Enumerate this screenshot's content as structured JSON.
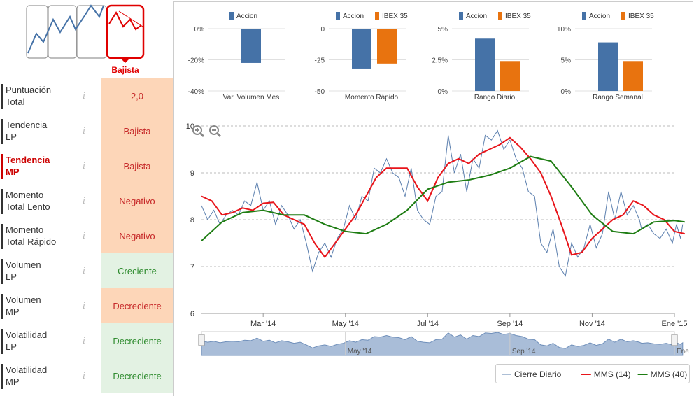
{
  "trend_header": {
    "selected_label": "Bajista"
  },
  "rows": [
    {
      "label_lines": [
        "Puntuación",
        "Total"
      ],
      "value": "2,0",
      "tone": "red",
      "active": false
    },
    {
      "label_lines": [
        "Tendencia",
        "LP"
      ],
      "value": "Bajista",
      "tone": "red",
      "active": false
    },
    {
      "label_lines": [
        "Tendencia",
        "MP"
      ],
      "value": "Bajista",
      "tone": "red",
      "active": true
    },
    {
      "label_lines": [
        "Momento",
        "Total Lento"
      ],
      "value": "Negativo",
      "tone": "red",
      "active": false
    },
    {
      "label_lines": [
        "Momento",
        "Total Rápido"
      ],
      "value": "Negativo",
      "tone": "red",
      "active": false
    },
    {
      "label_lines": [
        "Volumen",
        "LP"
      ],
      "value": "Creciente",
      "tone": "green",
      "active": false
    },
    {
      "label_lines": [
        "Volumen",
        "MP"
      ],
      "value": "Decreciente",
      "tone": "red",
      "active": false
    },
    {
      "label_lines": [
        "Volatilidad",
        "LP"
      ],
      "value": "Decreciente",
      "tone": "green",
      "active": false
    },
    {
      "label_lines": [
        "Volatilidad",
        "MP"
      ],
      "value": "Decreciente",
      "tone": "green",
      "active": false
    }
  ],
  "info_glyph": "i",
  "colors": {
    "accion": "#4572a7",
    "ibex": "#e8730f",
    "mms14": "#e8151b",
    "mms40": "#1e7d13",
    "cierre": "#5b7fae",
    "red_accent": "#e00000"
  },
  "chart_data": [
    {
      "type": "bar",
      "categories": [
        "Var. Volumen Mes"
      ],
      "series": [
        {
          "name": "Accion",
          "values": [
            -22
          ]
        }
      ],
      "yticks": [
        "0%",
        "-20%",
        "-40%"
      ],
      "ylim": [
        -40,
        0
      ]
    },
    {
      "type": "bar",
      "categories": [
        "Momento Rápido"
      ],
      "series": [
        {
          "name": "Accion",
          "values": [
            -32
          ]
        },
        {
          "name": "IBEX 35",
          "values": [
            -28
          ]
        }
      ],
      "yticks": [
        "0",
        "-25",
        "-50"
      ],
      "ylim": [
        -50,
        0
      ]
    },
    {
      "type": "bar",
      "categories": [
        "Rango Diario"
      ],
      "series": [
        {
          "name": "Accion",
          "values": [
            4.2
          ]
        },
        {
          "name": "IBEX 35",
          "values": [
            2.4
          ]
        }
      ],
      "yticks": [
        "5%",
        "2.5%",
        "0%"
      ],
      "ylim": [
        0,
        5
      ]
    },
    {
      "type": "bar",
      "categories": [
        "Rango Semanal"
      ],
      "series": [
        {
          "name": "Accion",
          "values": [
            7.8
          ]
        },
        {
          "name": "IBEX 35",
          "values": [
            4.8
          ]
        }
      ],
      "yticks": [
        "10%",
        "5%",
        "0%"
      ],
      "ylim": [
        0,
        10
      ]
    },
    {
      "type": "line",
      "yticks": [
        6,
        7,
        8,
        9,
        10
      ],
      "ylim": [
        6,
        10
      ],
      "xlim": [
        0,
        11.5
      ],
      "xticks": [
        {
          "x": 1.5,
          "label": "Mar '14"
        },
        {
          "x": 3.5,
          "label": "May '14"
        },
        {
          "x": 5.5,
          "label": "Jul '14"
        },
        {
          "x": 7.5,
          "label": "Sep '14"
        },
        {
          "x": 9.5,
          "label": "Nov '14"
        },
        {
          "x": 11.5,
          "label": "Ene '15"
        }
      ],
      "navigator_labels": [
        {
          "x": 3.5,
          "label": "May '14"
        },
        {
          "x": 7.5,
          "label": "Sep '14"
        },
        {
          "x": 11.5,
          "label": "Ene"
        }
      ],
      "legend": [
        "Cierre Diario",
        "MMS (14)",
        "MMS (40)"
      ],
      "series": [
        {
          "name": "Cierre Diario",
          "x": [
            0,
            0.15,
            0.3,
            0.45,
            0.6,
            0.75,
            0.9,
            1.05,
            1.2,
            1.35,
            1.5,
            1.65,
            1.8,
            1.95,
            2.1,
            2.25,
            2.4,
            2.55,
            2.7,
            2.85,
            3.0,
            3.15,
            3.3,
            3.45,
            3.6,
            3.75,
            3.9,
            4.05,
            4.2,
            4.35,
            4.5,
            4.65,
            4.8,
            4.95,
            5.1,
            5.25,
            5.4,
            5.55,
            5.7,
            5.85,
            6.0,
            6.15,
            6.3,
            6.45,
            6.6,
            6.75,
            6.9,
            7.05,
            7.2,
            7.35,
            7.5,
            7.65,
            7.8,
            7.95,
            8.1,
            8.25,
            8.4,
            8.55,
            8.7,
            8.85,
            9.0,
            9.15,
            9.3,
            9.45,
            9.6,
            9.75,
            9.9,
            10.05,
            10.2,
            10.35,
            10.5,
            10.65,
            10.7,
            10.85,
            11.0,
            11.15,
            11.3,
            11.45,
            11.55,
            11.65,
            11.7
          ],
          "y": [
            8.3,
            8.0,
            8.2,
            7.9,
            8.1,
            8.2,
            8.1,
            8.4,
            8.3,
            8.8,
            8.2,
            8.4,
            7.9,
            8.3,
            8.1,
            7.8,
            8.0,
            7.5,
            6.9,
            7.3,
            7.5,
            7.2,
            7.6,
            7.8,
            8.3,
            8.0,
            8.5,
            8.4,
            9.1,
            9.0,
            9.3,
            9.0,
            8.9,
            8.5,
            9.1,
            8.2,
            8.0,
            7.9,
            8.5,
            8.6,
            9.8,
            9.0,
            9.4,
            8.6,
            9.3,
            9.1,
            9.8,
            9.7,
            9.9,
            9.5,
            9.7,
            9.3,
            9.1,
            8.6,
            8.5,
            7.5,
            7.3,
            7.8,
            7.0,
            6.8,
            7.5,
            7.2,
            7.4,
            7.9,
            7.4,
            7.7,
            8.6,
            8.0,
            8.6,
            8.1,
            8.3,
            8.0,
            7.8,
            7.9,
            7.7,
            7.6,
            7.8,
            7.5,
            7.9,
            7.6,
            7.9
          ]
        },
        {
          "name": "MMS (14)",
          "x": [
            0,
            0.25,
            0.5,
            0.75,
            1.0,
            1.25,
            1.5,
            1.75,
            2.0,
            2.25,
            2.5,
            2.75,
            3.0,
            3.25,
            3.5,
            3.75,
            4.0,
            4.25,
            4.5,
            4.75,
            5.0,
            5.25,
            5.5,
            5.75,
            6.0,
            6.25,
            6.5,
            6.75,
            7.0,
            7.25,
            7.5,
            7.75,
            8.0,
            8.25,
            8.5,
            8.75,
            9.0,
            9.25,
            9.5,
            9.75,
            10.0,
            10.25,
            10.5,
            10.75,
            11.0,
            11.25,
            11.5,
            11.75
          ],
          "y": [
            8.5,
            8.4,
            8.1,
            8.15,
            8.25,
            8.2,
            8.35,
            8.37,
            8.1,
            8.0,
            7.9,
            7.5,
            7.2,
            7.5,
            7.8,
            8.1,
            8.5,
            8.9,
            9.1,
            9.1,
            9.1,
            8.7,
            8.4,
            8.9,
            9.2,
            9.3,
            9.2,
            9.4,
            9.5,
            9.6,
            9.75,
            9.55,
            9.3,
            9.0,
            8.5,
            7.9,
            7.25,
            7.3,
            7.6,
            7.8,
            8.0,
            8.1,
            8.4,
            8.3,
            8.1,
            8.0,
            7.75,
            7.7
          ]
        },
        {
          "name": "MMS (40)",
          "x": [
            0,
            0.5,
            1.0,
            1.5,
            2.0,
            2.5,
            3.0,
            3.5,
            4.0,
            4.5,
            5.0,
            5.5,
            6.0,
            6.5,
            7.0,
            7.5,
            8.0,
            8.5,
            9.0,
            9.5,
            10.0,
            10.5,
            11.0,
            11.5,
            11.75
          ],
          "y": [
            7.55,
            7.95,
            8.15,
            8.2,
            8.1,
            8.1,
            7.9,
            7.75,
            7.7,
            7.9,
            8.2,
            8.65,
            8.8,
            8.85,
            8.95,
            9.1,
            9.35,
            9.25,
            8.7,
            8.1,
            7.75,
            7.7,
            7.95,
            7.98,
            7.95
          ]
        }
      ]
    }
  ]
}
